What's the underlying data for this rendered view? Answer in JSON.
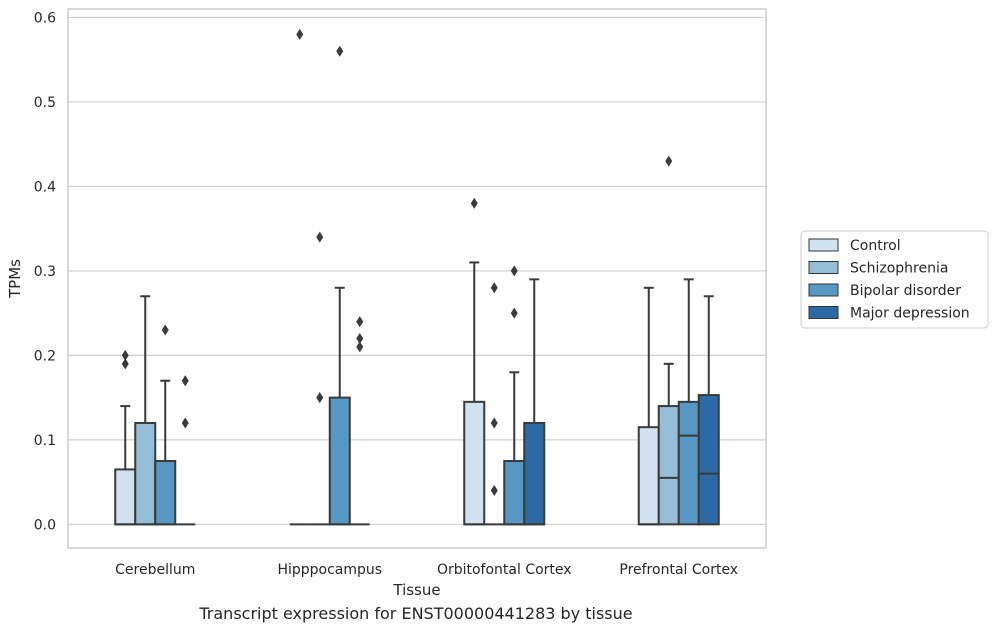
{
  "caption": "Transcript expression for ENST00000441283 by tissue",
  "chart_data": {
    "type": "box",
    "xlabel": "Tissue",
    "ylabel": "TPMs",
    "ylim": [
      -0.028,
      0.61
    ],
    "yticks": [
      0.0,
      0.1,
      0.2,
      0.3,
      0.4,
      0.5,
      0.6
    ],
    "ytick_labels": [
      "0.0",
      "0.1",
      "0.2",
      "0.3",
      "0.4",
      "0.5",
      "0.6"
    ],
    "grid": "horizontal",
    "legend_position": "right",
    "categories": [
      "Cerebellum",
      "Hipppocampus",
      "Orbitofontal Cortex",
      "Prefrontal Cortex"
    ],
    "series": [
      {
        "name": "Control",
        "color": "#d2e1f0",
        "boxes": [
          {
            "q1": 0.0,
            "median": 0.0,
            "q3": 0.065,
            "whisker_low": 0.0,
            "whisker_high": 0.14,
            "outliers": [
              0.19,
              0.2
            ]
          },
          {
            "q1": 0.0,
            "median": 0.0,
            "q3": 0.0,
            "whisker_low": 0.0,
            "whisker_high": 0.0,
            "outliers": [
              0.58
            ]
          },
          {
            "q1": 0.0,
            "median": 0.0,
            "q3": 0.145,
            "whisker_low": 0.0,
            "whisker_high": 0.31,
            "outliers": [
              0.38
            ]
          },
          {
            "q1": 0.0,
            "median": 0.0,
            "q3": 0.115,
            "whisker_low": 0.0,
            "whisker_high": 0.28,
            "outliers": []
          }
        ]
      },
      {
        "name": "Schizophrenia",
        "color": "#95bdd8",
        "boxes": [
          {
            "q1": 0.0,
            "median": 0.0,
            "q3": 0.12,
            "whisker_low": 0.0,
            "whisker_high": 0.27,
            "outliers": []
          },
          {
            "q1": 0.0,
            "median": 0.0,
            "q3": 0.0,
            "whisker_low": 0.0,
            "whisker_high": 0.0,
            "outliers": [
              0.15,
              0.34
            ]
          },
          {
            "q1": 0.0,
            "median": 0.0,
            "q3": 0.0,
            "whisker_low": 0.0,
            "whisker_high": 0.0,
            "outliers": [
              0.04,
              0.12,
              0.28
            ]
          },
          {
            "q1": 0.0,
            "median": 0.055,
            "q3": 0.14,
            "whisker_low": 0.0,
            "whisker_high": 0.19,
            "outliers": [
              0.43
            ]
          }
        ]
      },
      {
        "name": "Bipolar disorder",
        "color": "#5797c4",
        "boxes": [
          {
            "q1": 0.0,
            "median": 0.0,
            "q3": 0.075,
            "whisker_low": 0.0,
            "whisker_high": 0.17,
            "outliers": [
              0.23
            ]
          },
          {
            "q1": 0.0,
            "median": 0.0,
            "q3": 0.15,
            "whisker_low": 0.0,
            "whisker_high": 0.28,
            "outliers": [
              0.56
            ]
          },
          {
            "q1": 0.0,
            "median": 0.0,
            "q3": 0.075,
            "whisker_low": 0.0,
            "whisker_high": 0.18,
            "outliers": [
              0.25,
              0.3
            ]
          },
          {
            "q1": 0.0,
            "median": 0.105,
            "q3": 0.145,
            "whisker_low": 0.0,
            "whisker_high": 0.29,
            "outliers": []
          }
        ]
      },
      {
        "name": "Major depression",
        "color": "#2c6aa6",
        "boxes": [
          {
            "q1": 0.0,
            "median": 0.0,
            "q3": 0.0,
            "whisker_low": 0.0,
            "whisker_high": 0.0,
            "outliers": [
              0.12,
              0.17
            ]
          },
          {
            "q1": 0.0,
            "median": 0.0,
            "q3": 0.0,
            "whisker_low": 0.0,
            "whisker_high": 0.0,
            "outliers": [
              0.21,
              0.22,
              0.24
            ]
          },
          {
            "q1": 0.0,
            "median": 0.0,
            "q3": 0.12,
            "whisker_low": 0.0,
            "whisker_high": 0.29,
            "outliers": []
          },
          {
            "q1": 0.0,
            "median": 0.06,
            "q3": 0.153,
            "whisker_low": 0.0,
            "whisker_high": 0.27,
            "outliers": []
          }
        ]
      }
    ]
  }
}
